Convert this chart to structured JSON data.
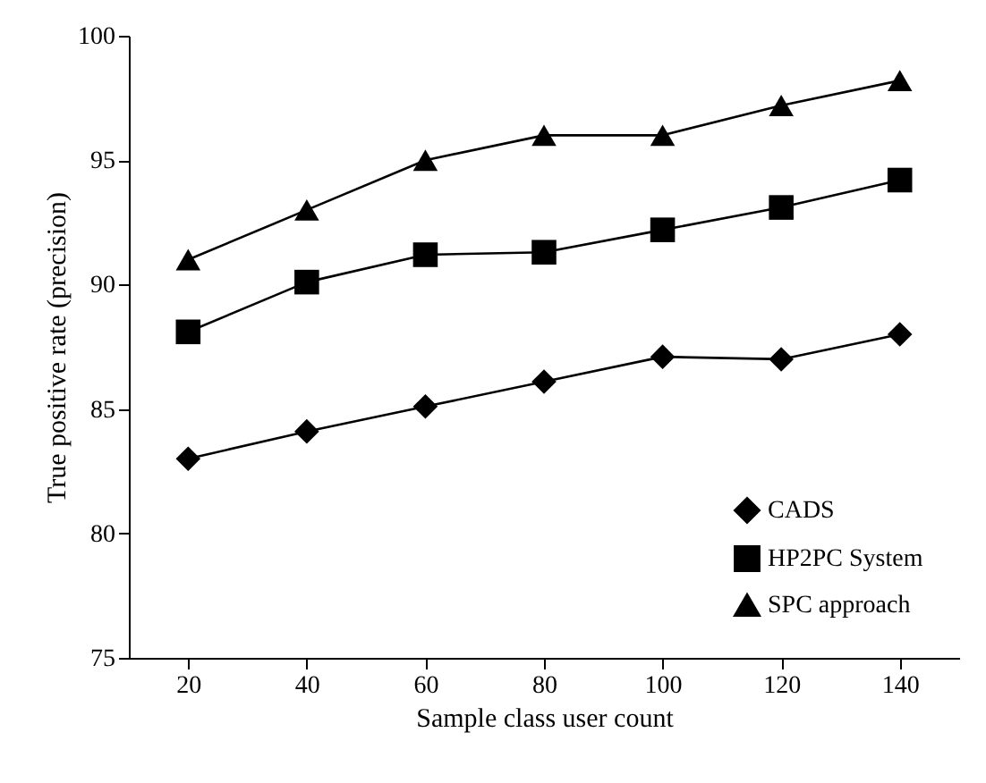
{
  "chart_data": {
    "type": "line",
    "xlabel": "Sample class user count",
    "ylabel": "True positive rate (precision)",
    "x": [
      20,
      40,
      60,
      80,
      100,
      120,
      140
    ],
    "series": [
      {
        "name": "CADS",
        "color": "#000000",
        "marker": "diamond",
        "values": [
          83.0,
          84.1,
          85.1,
          86.1,
          87.1,
          87.0,
          88.0
        ]
      },
      {
        "name": "HP2PC System",
        "color": "#000000",
        "marker": "square",
        "values": [
          88.1,
          90.1,
          91.2,
          91.3,
          92.2,
          93.1,
          94.2
        ]
      },
      {
        "name": "SPC approach",
        "color": "#000000",
        "marker": "triangle",
        "values": [
          91.0,
          93.0,
          95.0,
          96.0,
          96.0,
          97.2,
          98.2
        ]
      }
    ],
    "xlim": [
      10,
      150
    ],
    "xticks": [
      20,
      40,
      60,
      80,
      100,
      120,
      140
    ],
    "ylim": [
      75,
      100
    ],
    "yticks": [
      75,
      80,
      85,
      90,
      95,
      100
    ],
    "grid": false,
    "legend": "bottom right",
    "line_style": "solid"
  }
}
